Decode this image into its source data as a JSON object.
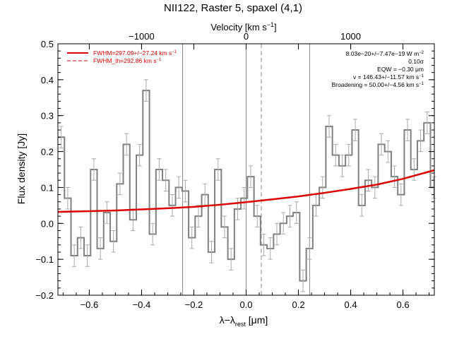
{
  "chart_data": {
    "type": "line",
    "title": "NII122, Raster 5, spaxel (4,1)",
    "xlabel": "λ−λ",
    "xlabel_sub": "rest",
    "xlabel_unit": " [μm]",
    "ylabel": "Flux density [Jy]",
    "top_axis_label": "Velocity [km s",
    "top_axis_label_sup": "−1",
    "top_axis_label_end": "]",
    "xlim": [
      -0.72,
      0.72
    ],
    "ylim": [
      -0.2,
      0.5
    ],
    "x_ticks": [
      -0.6,
      -0.4,
      -0.2,
      0.0,
      0.2,
      0.4,
      0.6
    ],
    "x_tick_labels": [
      "−0.6",
      "−0.4",
      "−0.2",
      "0.0",
      "0.2",
      "0.4",
      "0.6"
    ],
    "y_ticks": [
      -0.2,
      -0.1,
      0.0,
      0.1,
      0.2,
      0.3,
      0.4,
      0.5
    ],
    "y_tick_labels": [
      "−0.2",
      "−0.1",
      "0.0",
      "0.1",
      "0.2",
      "0.3",
      "0.4",
      "0.5"
    ],
    "top_ticks": [
      -0.4,
      0.0,
      0.4
    ],
    "top_tick_labels": [
      "−1000",
      "0",
      "1000"
    ],
    "vlines_solid": [
      -0.243,
      0.0,
      0.243
    ],
    "vlines_dashed": [
      0.058
    ],
    "legend": [
      {
        "label": "FWHM=297.09+/−27.24 km s",
        "sup": "−1",
        "style": "solid",
        "color": "#dd0000"
      },
      {
        "label": "FWHM_th=292.86 km s",
        "sup": "−1",
        "style": "dashed",
        "color": "#dd0000"
      }
    ],
    "annotations": [
      {
        "text": "8.03e−20+/−7.47e−19 W m",
        "sup": "−2"
      },
      {
        "text": "0.10σ",
        "sup": ""
      },
      {
        "text": "EQW = −0.30 μm",
        "sup": ""
      },
      {
        "text": "v = 146.43+/−11.57 km s",
        "sup": "−1"
      },
      {
        "text": "Broadening = 50.00+/−4.56 km s",
        "sup": "−1"
      }
    ],
    "series": [
      {
        "name": "spectrum",
        "style": "step",
        "color": "#808080",
        "x": [
          -0.72,
          -0.695,
          -0.67,
          -0.645,
          -0.62,
          -0.595,
          -0.57,
          -0.545,
          -0.52,
          -0.495,
          -0.47,
          -0.445,
          -0.42,
          -0.395,
          -0.37,
          -0.345,
          -0.32,
          -0.295,
          -0.27,
          -0.245,
          -0.22,
          -0.195,
          -0.17,
          -0.145,
          -0.12,
          -0.095,
          -0.07,
          -0.045,
          -0.02,
          0.005,
          0.03,
          0.055,
          0.08,
          0.105,
          0.13,
          0.155,
          0.18,
          0.205,
          0.23,
          0.255,
          0.28,
          0.305,
          0.33,
          0.355,
          0.38,
          0.405,
          0.43,
          0.455,
          0.48,
          0.505,
          0.53,
          0.555,
          0.58,
          0.605,
          0.63,
          0.655,
          0.68,
          0.705
        ],
        "y": [
          0.24,
          0.07,
          -0.09,
          -0.04,
          -0.09,
          0.15,
          -0.07,
          0.03,
          -0.05,
          0.11,
          0.22,
          0.01,
          0.19,
          0.37,
          -0.03,
          0.15,
          0.12,
          0.05,
          0.1,
          0.09,
          -0.04,
          0.02,
          0.08,
          -0.08,
          0.15,
          -0.01,
          -0.1,
          0.04,
          0.07,
          0.13,
          0.02,
          -0.06,
          -0.07,
          -0.03,
          0.0,
          0.02,
          0.03,
          -0.16,
          -0.07,
          0.05,
          0.1,
          0.27,
          0.19,
          0.16,
          0.19,
          0.26,
          0.05,
          0.12,
          0.1,
          0.22,
          0.2,
          0.13,
          0.08,
          0.26,
          0.15,
          0.23,
          0.28,
          0.1
        ],
        "yerr": 0.03
      },
      {
        "name": "fit",
        "style": "smooth",
        "color": "#dd0000",
        "x": [
          -0.72,
          -0.6,
          -0.5,
          -0.4,
          -0.3,
          -0.2,
          -0.1,
          0.0,
          0.1,
          0.2,
          0.3,
          0.4,
          0.5,
          0.6,
          0.72
        ],
        "y": [
          0.032,
          0.034,
          0.036,
          0.039,
          0.042,
          0.046,
          0.052,
          0.059,
          0.067,
          0.075,
          0.085,
          0.096,
          0.108,
          0.124,
          0.148
        ]
      }
    ]
  }
}
